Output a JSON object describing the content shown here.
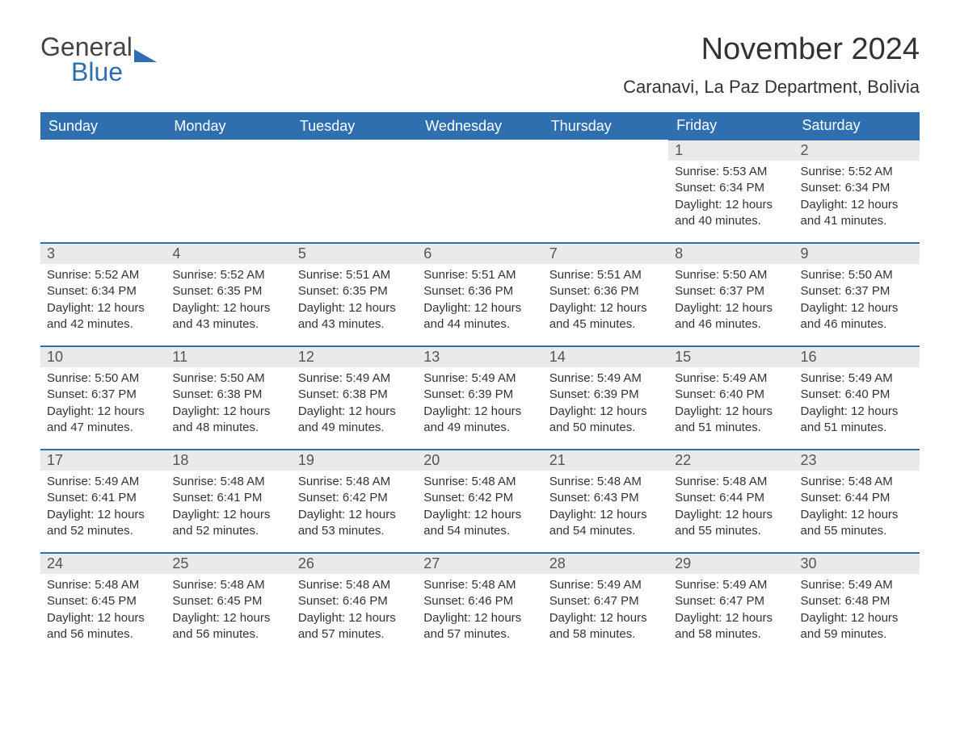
{
  "logo": {
    "part1": "General",
    "part2": "Blue"
  },
  "title": "November 2024",
  "location": "Caranavi, La Paz Department, Bolivia",
  "colors": {
    "header_bg": "#2f6fb0",
    "header_text": "#ffffff",
    "daynum_bg": "#eaeaea",
    "rule": "#2f6fb0",
    "body_text": "#333333",
    "page_bg": "#ffffff"
  },
  "weekdays": [
    "Sunday",
    "Monday",
    "Tuesday",
    "Wednesday",
    "Thursday",
    "Friday",
    "Saturday"
  ],
  "labels": {
    "sunrise": "Sunrise: ",
    "sunset": "Sunset: ",
    "daylight": "Daylight: "
  },
  "weeks": [
    [
      null,
      null,
      null,
      null,
      null,
      {
        "n": "1",
        "sunrise": "5:53 AM",
        "sunset": "6:34 PM",
        "daylight": "12 hours and 40 minutes."
      },
      {
        "n": "2",
        "sunrise": "5:52 AM",
        "sunset": "6:34 PM",
        "daylight": "12 hours and 41 minutes."
      }
    ],
    [
      {
        "n": "3",
        "sunrise": "5:52 AM",
        "sunset": "6:34 PM",
        "daylight": "12 hours and 42 minutes."
      },
      {
        "n": "4",
        "sunrise": "5:52 AM",
        "sunset": "6:35 PM",
        "daylight": "12 hours and 43 minutes."
      },
      {
        "n": "5",
        "sunrise": "5:51 AM",
        "sunset": "6:35 PM",
        "daylight": "12 hours and 43 minutes."
      },
      {
        "n": "6",
        "sunrise": "5:51 AM",
        "sunset": "6:36 PM",
        "daylight": "12 hours and 44 minutes."
      },
      {
        "n": "7",
        "sunrise": "5:51 AM",
        "sunset": "6:36 PM",
        "daylight": "12 hours and 45 minutes."
      },
      {
        "n": "8",
        "sunrise": "5:50 AM",
        "sunset": "6:37 PM",
        "daylight": "12 hours and 46 minutes."
      },
      {
        "n": "9",
        "sunrise": "5:50 AM",
        "sunset": "6:37 PM",
        "daylight": "12 hours and 46 minutes."
      }
    ],
    [
      {
        "n": "10",
        "sunrise": "5:50 AM",
        "sunset": "6:37 PM",
        "daylight": "12 hours and 47 minutes."
      },
      {
        "n": "11",
        "sunrise": "5:50 AM",
        "sunset": "6:38 PM",
        "daylight": "12 hours and 48 minutes."
      },
      {
        "n": "12",
        "sunrise": "5:49 AM",
        "sunset": "6:38 PM",
        "daylight": "12 hours and 49 minutes."
      },
      {
        "n": "13",
        "sunrise": "5:49 AM",
        "sunset": "6:39 PM",
        "daylight": "12 hours and 49 minutes."
      },
      {
        "n": "14",
        "sunrise": "5:49 AM",
        "sunset": "6:39 PM",
        "daylight": "12 hours and 50 minutes."
      },
      {
        "n": "15",
        "sunrise": "5:49 AM",
        "sunset": "6:40 PM",
        "daylight": "12 hours and 51 minutes."
      },
      {
        "n": "16",
        "sunrise": "5:49 AM",
        "sunset": "6:40 PM",
        "daylight": "12 hours and 51 minutes."
      }
    ],
    [
      {
        "n": "17",
        "sunrise": "5:49 AM",
        "sunset": "6:41 PM",
        "daylight": "12 hours and 52 minutes."
      },
      {
        "n": "18",
        "sunrise": "5:48 AM",
        "sunset": "6:41 PM",
        "daylight": "12 hours and 52 minutes."
      },
      {
        "n": "19",
        "sunrise": "5:48 AM",
        "sunset": "6:42 PM",
        "daylight": "12 hours and 53 minutes."
      },
      {
        "n": "20",
        "sunrise": "5:48 AM",
        "sunset": "6:42 PM",
        "daylight": "12 hours and 54 minutes."
      },
      {
        "n": "21",
        "sunrise": "5:48 AM",
        "sunset": "6:43 PM",
        "daylight": "12 hours and 54 minutes."
      },
      {
        "n": "22",
        "sunrise": "5:48 AM",
        "sunset": "6:44 PM",
        "daylight": "12 hours and 55 minutes."
      },
      {
        "n": "23",
        "sunrise": "5:48 AM",
        "sunset": "6:44 PM",
        "daylight": "12 hours and 55 minutes."
      }
    ],
    [
      {
        "n": "24",
        "sunrise": "5:48 AM",
        "sunset": "6:45 PM",
        "daylight": "12 hours and 56 minutes."
      },
      {
        "n": "25",
        "sunrise": "5:48 AM",
        "sunset": "6:45 PM",
        "daylight": "12 hours and 56 minutes."
      },
      {
        "n": "26",
        "sunrise": "5:48 AM",
        "sunset": "6:46 PM",
        "daylight": "12 hours and 57 minutes."
      },
      {
        "n": "27",
        "sunrise": "5:48 AM",
        "sunset": "6:46 PM",
        "daylight": "12 hours and 57 minutes."
      },
      {
        "n": "28",
        "sunrise": "5:49 AM",
        "sunset": "6:47 PM",
        "daylight": "12 hours and 58 minutes."
      },
      {
        "n": "29",
        "sunrise": "5:49 AM",
        "sunset": "6:47 PM",
        "daylight": "12 hours and 58 minutes."
      },
      {
        "n": "30",
        "sunrise": "5:49 AM",
        "sunset": "6:48 PM",
        "daylight": "12 hours and 59 minutes."
      }
    ]
  ]
}
